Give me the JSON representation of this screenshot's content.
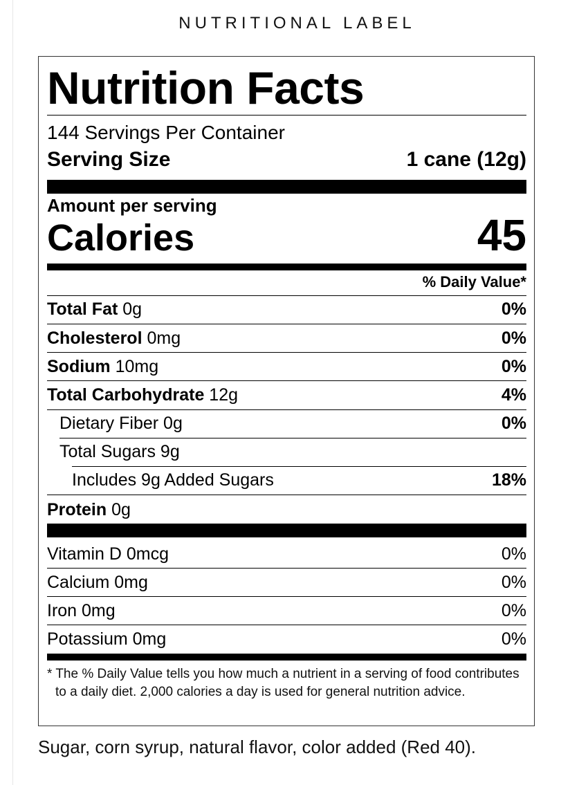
{
  "header": {
    "title": "NUTRITIONAL LABEL"
  },
  "label": {
    "title": "Nutrition Facts",
    "servings_per_container": "144 Servings Per Container",
    "serving_size_label": "Serving Size",
    "serving_size_value": "1 cane (12g)",
    "amount_per_serving": "Amount per serving",
    "calories_label": "Calories",
    "calories_value": "45",
    "daily_value_header": "% Daily Value*",
    "nutrients": [
      {
        "name": "Total Fat",
        "amount": "0g",
        "dv": "0%"
      },
      {
        "name": "Cholesterol",
        "amount": "0mg",
        "dv": "0%"
      },
      {
        "name": "Sodium",
        "amount": "10mg",
        "dv": "0%"
      },
      {
        "name": "Total Carbohydrate",
        "amount": "12g",
        "dv": "4%"
      },
      {
        "name": "Dietary Fiber 0g",
        "dv": "0%"
      },
      {
        "name": "Total Sugars 9g"
      },
      {
        "name": "Includes 9g Added Sugars",
        "dv": "18%"
      },
      {
        "name": "Protein",
        "amount": "0g"
      }
    ],
    "vitamins": [
      {
        "name": "Vitamin D 0mcg",
        "dv": "0%"
      },
      {
        "name": "Calcium 0mg",
        "dv": "0%"
      },
      {
        "name": "Iron 0mg",
        "dv": "0%"
      },
      {
        "name": "Potassium 0mg",
        "dv": "0%"
      }
    ],
    "footnote": "* The % Daily Value tells you how much a nutrient in a serving of food contributes to a daily diet. 2,000 calories a day is used for general nutrition advice."
  },
  "ingredients": "Sugar, corn syrup, natural flavor, color added (Red 40)."
}
